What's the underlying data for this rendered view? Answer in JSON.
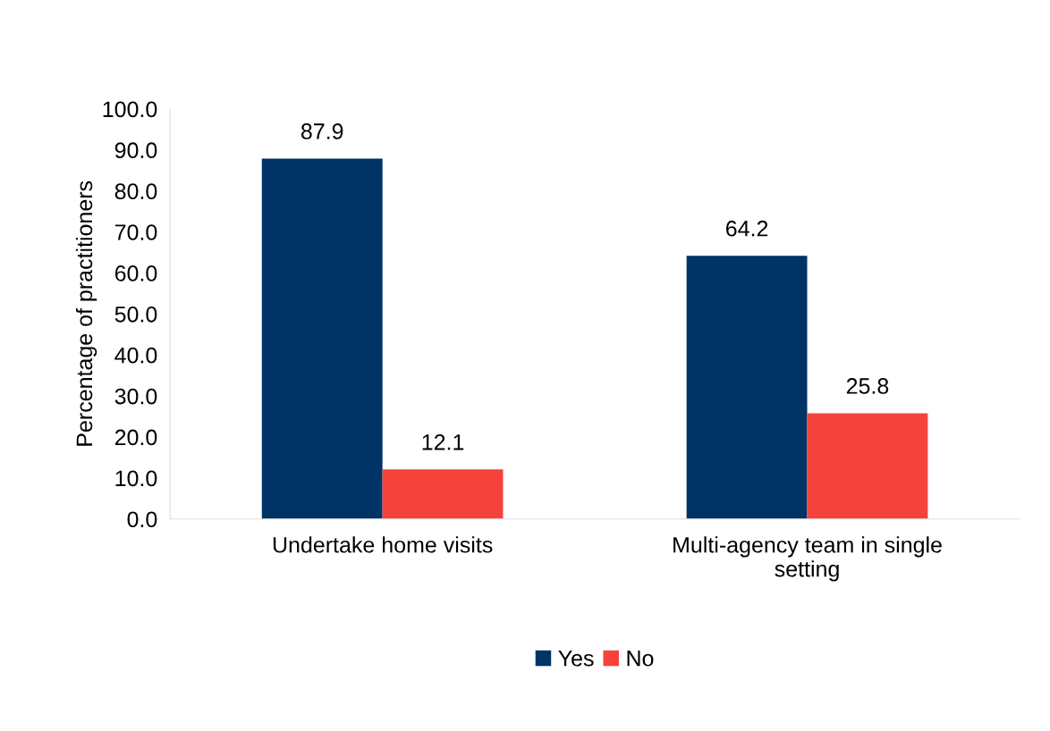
{
  "chart_data": {
    "type": "bar",
    "ylabel": "Percentage of practitioners",
    "categories": [
      "Undertake home visits",
      "Multi-agency team in single setting"
    ],
    "series": [
      {
        "name": "Yes",
        "color": "#003366",
        "values": [
          87.9,
          64.2
        ]
      },
      {
        "name": "No",
        "color": "#f5433b",
        "values": [
          12.1,
          25.8
        ]
      }
    ],
    "ylim": [
      0,
      100
    ],
    "yticks": [
      {
        "value": 0,
        "label": "0.0"
      },
      {
        "value": 10,
        "label": "10.0"
      },
      {
        "value": 20,
        "label": "20.0"
      },
      {
        "value": 30,
        "label": "30.0"
      },
      {
        "value": 40,
        "label": "40.0"
      },
      {
        "value": 50,
        "label": "50.0"
      },
      {
        "value": 60,
        "label": "60.0"
      },
      {
        "value": 70,
        "label": "70.0"
      },
      {
        "value": 80,
        "label": "80.0"
      },
      {
        "value": 90,
        "label": "90.0"
      },
      {
        "value": 100,
        "label": "100.0"
      }
    ],
    "data_labels": true,
    "legend": "bottom"
  }
}
